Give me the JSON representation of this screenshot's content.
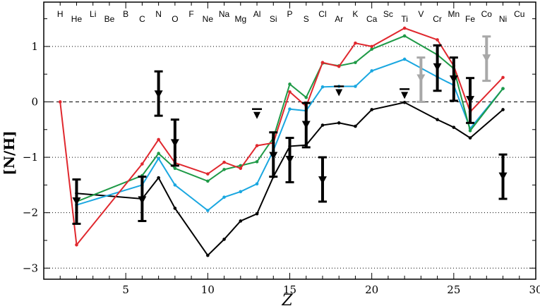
{
  "chart_data": {
    "type": "line",
    "title": "",
    "xlabel": "Z",
    "ylabel": "[N/H]",
    "xlim": [
      0,
      30
    ],
    "ylim": [
      -3.2,
      1.8
    ],
    "x_ticks": [
      5,
      10,
      15,
      20,
      25,
      30
    ],
    "y_ticks": [
      1,
      0,
      -1,
      -2,
      -3
    ],
    "y_tick_labels": [
      "1",
      "0",
      "−1",
      "−2",
      "−3"
    ],
    "reference_lines": [
      {
        "y": 1,
        "style": "dotted"
      },
      {
        "y": 0,
        "style": "dashed"
      },
      {
        "y": -1,
        "style": "dotted"
      },
      {
        "y": -2,
        "style": "dotted"
      },
      {
        "y": -3,
        "style": "dotted"
      }
    ],
    "element_labels": [
      {
        "z": 1,
        "symbol": "H",
        "row": "upper"
      },
      {
        "z": 2,
        "symbol": "He",
        "row": "lower"
      },
      {
        "z": 3,
        "symbol": "Li",
        "row": "upper"
      },
      {
        "z": 4,
        "symbol": "Be",
        "row": "lower"
      },
      {
        "z": 5,
        "symbol": "B",
        "row": "upper"
      },
      {
        "z": 6,
        "symbol": "C",
        "row": "lower"
      },
      {
        "z": 7,
        "symbol": "N",
        "row": "upper"
      },
      {
        "z": 8,
        "symbol": "O",
        "row": "lower"
      },
      {
        "z": 9,
        "symbol": "F",
        "row": "upper"
      },
      {
        "z": 10,
        "symbol": "Ne",
        "row": "lower"
      },
      {
        "z": 11,
        "symbol": "Na",
        "row": "upper"
      },
      {
        "z": 12,
        "symbol": "Mg",
        "row": "lower"
      },
      {
        "z": 13,
        "symbol": "Al",
        "row": "upper"
      },
      {
        "z": 14,
        "symbol": "Si",
        "row": "lower"
      },
      {
        "z": 15,
        "symbol": "P",
        "row": "upper"
      },
      {
        "z": 16,
        "symbol": "S",
        "row": "lower"
      },
      {
        "z": 17,
        "symbol": "Cl",
        "row": "upper"
      },
      {
        "z": 18,
        "symbol": "Ar",
        "row": "lower"
      },
      {
        "z": 19,
        "symbol": "K",
        "row": "upper"
      },
      {
        "z": 20,
        "symbol": "Ca",
        "row": "lower"
      },
      {
        "z": 21,
        "symbol": "Sc",
        "row": "upper"
      },
      {
        "z": 22,
        "symbol": "Ti",
        "row": "lower"
      },
      {
        "z": 23,
        "symbol": "V",
        "row": "upper"
      },
      {
        "z": 24,
        "symbol": "Cr",
        "row": "lower"
      },
      {
        "z": 25,
        "symbol": "Mn",
        "row": "upper"
      },
      {
        "z": 26,
        "symbol": "Fe",
        "row": "lower"
      },
      {
        "z": 27,
        "symbol": "Co",
        "row": "upper"
      },
      {
        "z": 28,
        "symbol": "Ni",
        "row": "lower"
      },
      {
        "z": 29,
        "symbol": "Cu",
        "row": "upper"
      }
    ],
    "series": [
      {
        "name": "black",
        "color": "#000000",
        "x": [
          2,
          6,
          7,
          8,
          10,
          11,
          12,
          13,
          14,
          15,
          16,
          17,
          18,
          19,
          20,
          22,
          24,
          25,
          26,
          28
        ],
        "y": [
          -1.65,
          -1.75,
          -1.37,
          -1.92,
          -2.77,
          -2.48,
          -2.15,
          -2.02,
          -1.35,
          -0.8,
          -0.78,
          -0.42,
          -0.38,
          -0.44,
          -0.14,
          -0.01,
          -0.32,
          -0.46,
          -0.65,
          -0.14
        ]
      },
      {
        "name": "blue",
        "color": "#1aa7e0",
        "x": [
          2,
          6,
          7,
          8,
          10,
          11,
          12,
          13,
          14,
          15,
          16,
          17,
          18,
          19,
          20,
          22,
          24,
          25,
          26,
          28
        ],
        "y": [
          -1.86,
          -1.5,
          -1.02,
          -1.5,
          -1.96,
          -1.72,
          -1.62,
          -1.48,
          -0.88,
          -0.13,
          -0.16,
          0.27,
          0.28,
          0.28,
          0.56,
          0.77,
          0.45,
          0.3,
          -0.48,
          0.24
        ]
      },
      {
        "name": "green",
        "color": "#1f9a47",
        "x": [
          2,
          6,
          7,
          8,
          10,
          11,
          12,
          13,
          14,
          15,
          16,
          17,
          18,
          19,
          20,
          22,
          24,
          25,
          26,
          28
        ],
        "y": [
          -1.8,
          -1.33,
          -0.93,
          -1.2,
          -1.43,
          -1.22,
          -1.15,
          -1.08,
          -0.65,
          0.32,
          0.08,
          0.7,
          0.65,
          0.71,
          0.95,
          1.19,
          0.85,
          0.6,
          -0.52,
          0.24
        ]
      },
      {
        "name": "red",
        "color": "#e0282e",
        "x": [
          1,
          2,
          6,
          7,
          8,
          10,
          11,
          12,
          13,
          14,
          15,
          16,
          17,
          18,
          19,
          20,
          22,
          24,
          25,
          26,
          28
        ],
        "y": [
          0.0,
          -2.58,
          -1.12,
          -0.68,
          -1.1,
          -1.3,
          -1.09,
          -1.2,
          -0.79,
          -0.74,
          0.18,
          -0.08,
          0.71,
          0.64,
          1.06,
          1.0,
          1.33,
          1.12,
          0.65,
          -0.18,
          0.44
        ]
      }
    ],
    "observations": [
      {
        "z": 2,
        "value": -1.8,
        "low": -2.2,
        "high": -1.4,
        "color": "#000000"
      },
      {
        "z": 6,
        "value": -1.78,
        "low": -2.15,
        "high": -1.35,
        "color": "#000000"
      },
      {
        "z": 7,
        "value": 0.13,
        "low": -0.25,
        "high": 0.55,
        "color": "#000000"
      },
      {
        "z": 8,
        "value": -0.75,
        "low": -1.15,
        "high": -0.32,
        "color": "#000000"
      },
      {
        "z": 14,
        "value": -0.98,
        "low": -1.35,
        "high": -0.55,
        "color": "#000000"
      },
      {
        "z": 15,
        "value": -1.05,
        "low": -1.45,
        "high": -0.65,
        "color": "#000000"
      },
      {
        "z": 16,
        "value": -0.42,
        "low": -0.82,
        "high": -0.02,
        "color": "#000000"
      },
      {
        "z": 17,
        "value": -1.42,
        "low": -1.8,
        "high": -1.0,
        "color": "#000000"
      },
      {
        "z": 23,
        "value": 0.42,
        "low": 0.0,
        "high": 0.8,
        "color": "#a8a8a8"
      },
      {
        "z": 24,
        "value": 0.62,
        "low": 0.2,
        "high": 1.02,
        "color": "#000000"
      },
      {
        "z": 25,
        "value": 0.4,
        "low": 0.02,
        "high": 0.8,
        "color": "#000000"
      },
      {
        "z": 26,
        "value": 0.03,
        "low": -0.38,
        "high": 0.43,
        "color": "#000000"
      },
      {
        "z": 27,
        "value": 0.78,
        "low": 0.38,
        "high": 1.18,
        "color": "#a8a8a8"
      },
      {
        "z": 28,
        "value": -1.35,
        "low": -1.75,
        "high": -0.95,
        "color": "#000000"
      }
    ],
    "upper_limits": [
      {
        "z": 13,
        "value": -0.13
      },
      {
        "z": 18,
        "value": 0.28
      },
      {
        "z": 22,
        "value": 0.23
      }
    ]
  }
}
